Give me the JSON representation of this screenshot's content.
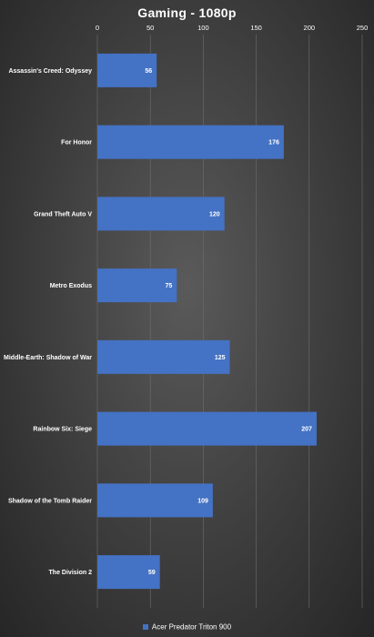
{
  "chart_data": {
    "type": "bar",
    "orientation": "horizontal",
    "title": "Gaming - 1080p",
    "categories": [
      "Assassin's Creed: Odyssey",
      "For Honor",
      "Grand Theft Auto V",
      "Metro Exodus",
      "Middle-Earth: Shadow of War",
      "Rainbow Six: Siege",
      "Shadow of the Tomb Raider",
      "The Division 2"
    ],
    "series": [
      {
        "name": "Acer Predator Triton 900",
        "values": [
          56,
          176,
          120,
          75,
          125,
          207,
          109,
          59
        ],
        "color": "#4472c4"
      }
    ],
    "xlim": [
      0,
      250
    ],
    "xticks": [
      0,
      50,
      100,
      150,
      200,
      250
    ],
    "x_axis_position": "top",
    "grid": true,
    "legend": "bottom",
    "data_labels": true
  }
}
